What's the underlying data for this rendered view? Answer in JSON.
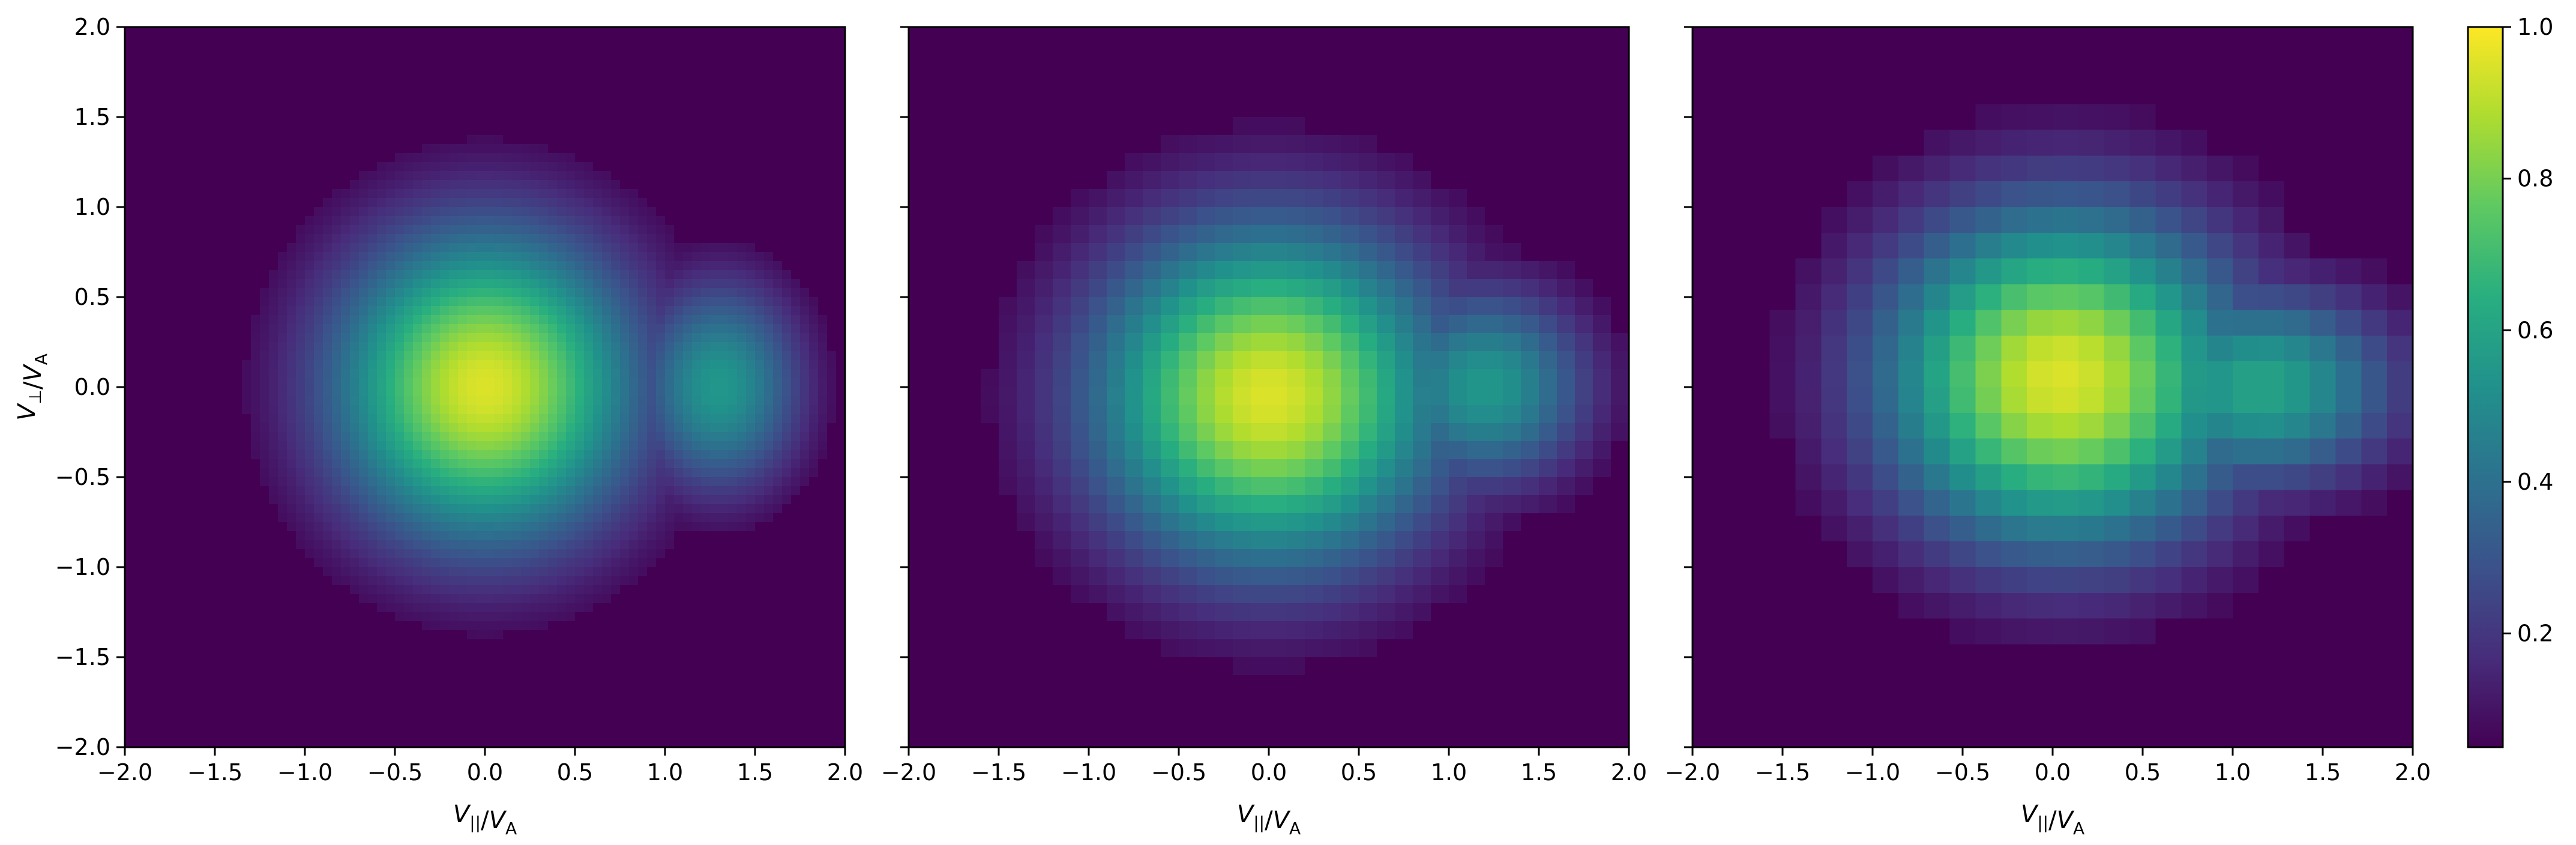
{
  "chart_data": [
    {
      "type": "heatmap",
      "xlabel": "V_||/V_A",
      "ylabel": "V_⊥/V_A",
      "xlim": [
        -2.0,
        2.0
      ],
      "ylim": [
        -2.0,
        2.0
      ],
      "xticks": [
        "−2.0",
        "−1.5",
        "−1.0",
        "−0.5",
        "0.0",
        "0.5",
        "1.0",
        "1.5",
        "2.0"
      ],
      "yticks": [
        "−2.0",
        "−1.5",
        "−1.0",
        "−0.5",
        "0.0",
        "0.5",
        "1.0",
        "1.5",
        "2.0"
      ],
      "grid": false,
      "grid_cells": 80,
      "background_level": 0.05,
      "blobs": [
        {
          "cx": 0.0,
          "cy": 0.0,
          "sx": 0.6,
          "sy": 0.62,
          "amp": 0.95
        },
        {
          "cx": 1.3,
          "cy": 0.0,
          "sx": 0.33,
          "sy": 0.42,
          "amp": 0.55
        }
      ],
      "cutoff_level": 0.08
    },
    {
      "type": "heatmap",
      "xlabel": "V_||/V_A",
      "ylabel": "",
      "xlim": [
        -2.0,
        2.0
      ],
      "ylim": [
        -2.0,
        2.0
      ],
      "xticks": [
        "−2.0",
        "−1.5",
        "−1.0",
        "−0.5",
        "0.0",
        "0.5",
        "1.0",
        "1.5",
        "2.0"
      ],
      "yticks": [],
      "grid": false,
      "grid_cells": 40,
      "background_level": 0.05,
      "blobs": [
        {
          "cx": 0.0,
          "cy": -0.05,
          "sx": 0.7,
          "sy": 0.68,
          "amp": 0.95
        },
        {
          "cx": 1.2,
          "cy": 0.0,
          "sx": 0.42,
          "sy": 0.4,
          "amp": 0.55
        }
      ],
      "cutoff_level": 0.08
    },
    {
      "type": "heatmap",
      "xlabel": "V_||/V_A",
      "ylabel": "",
      "xlim": [
        -2.0,
        2.0
      ],
      "ylim": [
        -2.0,
        2.0
      ],
      "xticks": [
        "−2.0",
        "−1.5",
        "−1.0",
        "−0.5",
        "0.0",
        "0.5",
        "1.0",
        "1.5",
        "2.0"
      ],
      "yticks": [],
      "grid": false,
      "grid_cells": 28,
      "background_level": 0.05,
      "blobs": [
        {
          "cx": 0.05,
          "cy": 0.05,
          "sx": 0.72,
          "sy": 0.68,
          "amp": 0.95
        },
        {
          "cx": 1.15,
          "cy": 0.0,
          "sx": 0.55,
          "sy": 0.4,
          "amp": 0.6
        }
      ],
      "cutoff_level": 0.08
    }
  ],
  "colorbar": {
    "colormap": "viridis",
    "range": [
      0.05,
      1.0
    ],
    "ticks": [
      {
        "value": 0.2,
        "label": "0.2"
      },
      {
        "value": 0.4,
        "label": "0.4"
      },
      {
        "value": 0.6,
        "label": "0.6"
      },
      {
        "value": 0.8,
        "label": "0.8"
      },
      {
        "value": 1.0,
        "label": "1.0"
      }
    ]
  }
}
